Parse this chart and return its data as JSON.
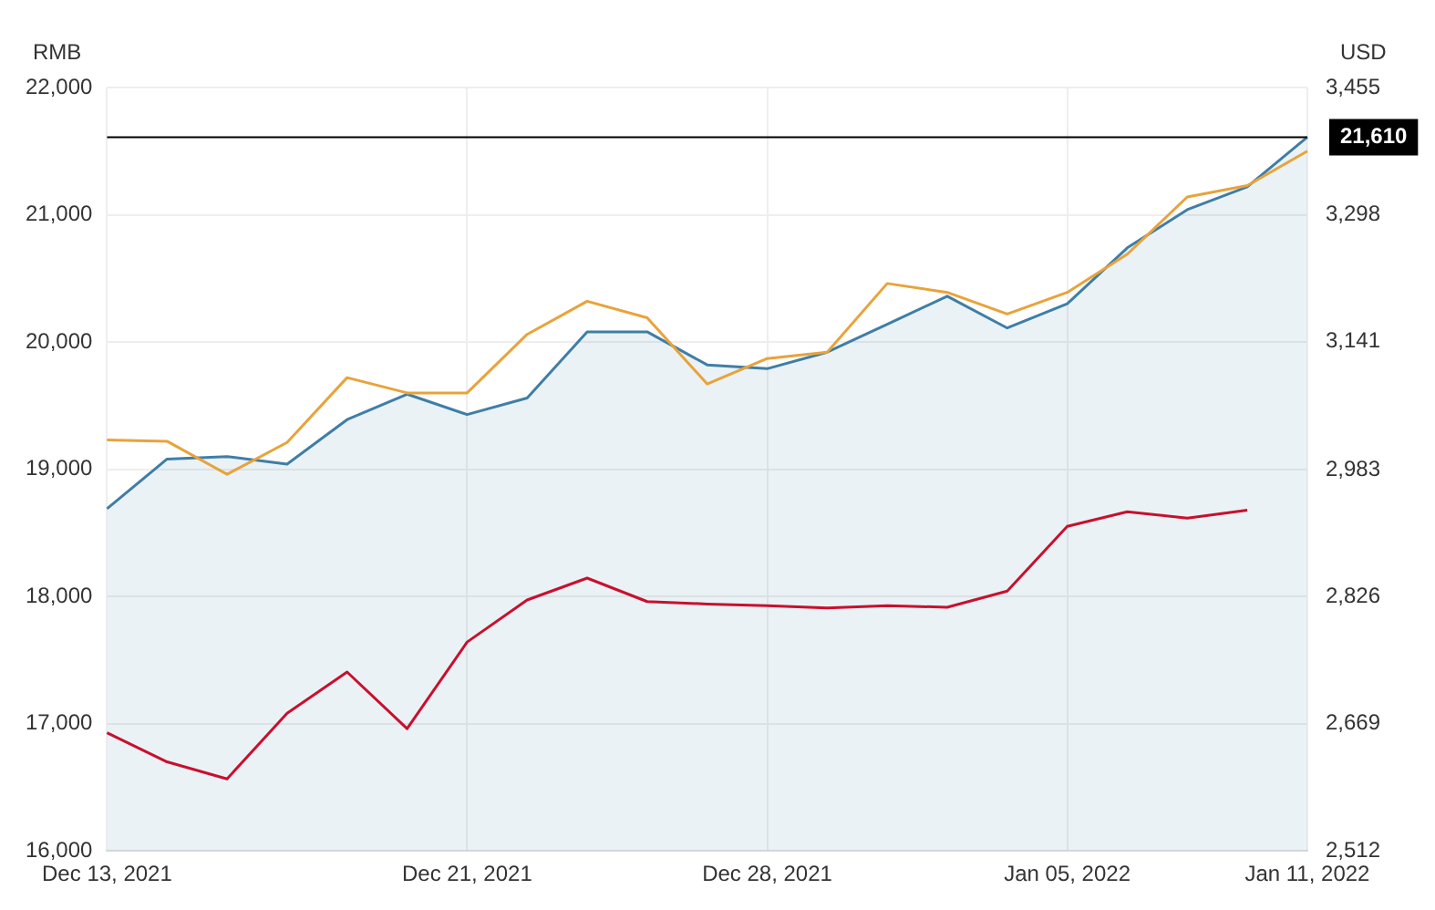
{
  "chart_data": {
    "type": "line",
    "categories": [
      "Dec 13, 2021",
      null,
      null,
      null,
      null,
      null,
      "Dec 21, 2021",
      null,
      null,
      null,
      null,
      "Dec 28, 2021",
      null,
      null,
      null,
      null,
      "Jan 05, 2022",
      null,
      null,
      null,
      "Jan 11, 2022"
    ],
    "series": [
      {
        "type": "area",
        "color": "#3f7ea6",
        "values": [
          18690,
          19080,
          19100,
          19040,
          19390,
          19590,
          19430,
          19560,
          20080,
          20080,
          19820,
          19790,
          19920,
          20140,
          20360,
          20110,
          20300,
          20740,
          21040,
          21220,
          21610
        ]
      },
      {
        "type": "line",
        "color": "#e8a33a",
        "values": [
          19230,
          19220,
          18960,
          19210,
          19720,
          19600,
          19600,
          20060,
          20320,
          20190,
          19670,
          19870,
          19920,
          20460,
          20390,
          20220,
          20390,
          20690,
          21140,
          21230,
          21500
        ]
      },
      {
        "type": "line",
        "color": "#c8102e",
        "axis": "y2",
        "values": [
          2658,
          2622,
          2601,
          2682,
          2733,
          2663,
          2770,
          2822,
          2849,
          2820,
          2817,
          2815,
          2812,
          2815,
          2813,
          2833,
          2913,
          2931,
          2923,
          2933,
          null
        ]
      }
    ],
    "ylabel": "RMB",
    "y2label": "USD",
    "ylim": [
      16000,
      22000
    ],
    "yticks": [
      {
        "value": 16000,
        "label": "16,000"
      },
      {
        "value": 17000,
        "label": "17,000"
      },
      {
        "value": 18000,
        "label": "18,000"
      },
      {
        "value": 19000,
        "label": "19,000"
      },
      {
        "value": 20000,
        "label": "20,000"
      },
      {
        "value": 21000,
        "label": "21,000"
      },
      {
        "value": 22000,
        "label": "22,000"
      }
    ],
    "y2lim": [
      2512,
      3455
    ],
    "y2ticks": [
      {
        "value": 2512,
        "label": "2,512"
      },
      {
        "value": 2669,
        "label": "2,669"
      },
      {
        "value": 2826,
        "label": "2,826"
      },
      {
        "value": 2983,
        "label": "2,983"
      },
      {
        "value": 3141,
        "label": "3,141"
      },
      {
        "value": 3298,
        "label": "3,298"
      },
      {
        "value": 3455,
        "label": "3,455"
      }
    ],
    "ref_lines": [
      {
        "axis": "y",
        "value": 21610,
        "label": "21,610",
        "color": "#000000"
      }
    ],
    "grid": true,
    "legend": false,
    "marker": "none",
    "line_style": "solid"
  }
}
